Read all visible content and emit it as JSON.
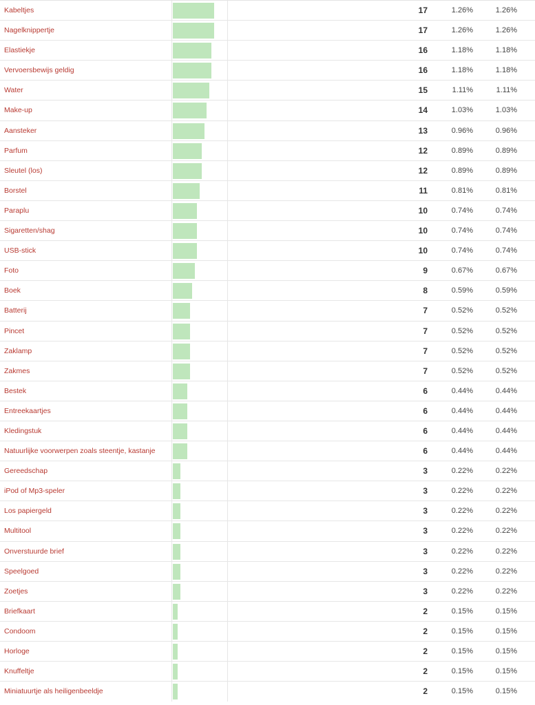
{
  "rows": [
    {
      "label": "Kabeltjes",
      "count": "17",
      "pct": "1.26%",
      "pct_valid": "1.26%",
      "share": 17
    },
    {
      "label": "Nagelknippertje",
      "count": "17",
      "pct": "1.26%",
      "pct_valid": "1.26%",
      "share": 17
    },
    {
      "label": "Elastiekje",
      "count": "16",
      "pct": "1.18%",
      "pct_valid": "1.18%",
      "share": 16
    },
    {
      "label": "Vervoersbewijs geldig",
      "count": "16",
      "pct": "1.18%",
      "pct_valid": "1.18%",
      "share": 16
    },
    {
      "label": "Water",
      "count": "15",
      "pct": "1.11%",
      "pct_valid": "1.11%",
      "share": 15
    },
    {
      "label": "Make-up",
      "count": "14",
      "pct": "1.03%",
      "pct_valid": "1.03%",
      "share": 14
    },
    {
      "label": "Aansteker",
      "count": "13",
      "pct": "0.96%",
      "pct_valid": "0.96%",
      "share": 13
    },
    {
      "label": "Parfum",
      "count": "12",
      "pct": "0.89%",
      "pct_valid": "0.89%",
      "share": 12
    },
    {
      "label": "Sleutel (los)",
      "count": "12",
      "pct": "0.89%",
      "pct_valid": "0.89%",
      "share": 12
    },
    {
      "label": "Borstel",
      "count": "11",
      "pct": "0.81%",
      "pct_valid": "0.81%",
      "share": 11
    },
    {
      "label": "Paraplu",
      "count": "10",
      "pct": "0.74%",
      "pct_valid": "0.74%",
      "share": 10
    },
    {
      "label": "Sigaretten/shag",
      "count": "10",
      "pct": "0.74%",
      "pct_valid": "0.74%",
      "share": 10
    },
    {
      "label": "USB-stick",
      "count": "10",
      "pct": "0.74%",
      "pct_valid": "0.74%",
      "share": 10
    },
    {
      "label": "Foto",
      "count": "9",
      "pct": "0.67%",
      "pct_valid": "0.67%",
      "share": 9
    },
    {
      "label": "Boek",
      "count": "8",
      "pct": "0.59%",
      "pct_valid": "0.59%",
      "share": 8
    },
    {
      "label": "Batterij",
      "count": "7",
      "pct": "0.52%",
      "pct_valid": "0.52%",
      "share": 7
    },
    {
      "label": "Pincet",
      "count": "7",
      "pct": "0.52%",
      "pct_valid": "0.52%",
      "share": 7
    },
    {
      "label": "Zaklamp",
      "count": "7",
      "pct": "0.52%",
      "pct_valid": "0.52%",
      "share": 7
    },
    {
      "label": "Zakmes",
      "count": "7",
      "pct": "0.52%",
      "pct_valid": "0.52%",
      "share": 7
    },
    {
      "label": "Bestek",
      "count": "6",
      "pct": "0.44%",
      "pct_valid": "0.44%",
      "share": 6
    },
    {
      "label": "Entreekaartjes",
      "count": "6",
      "pct": "0.44%",
      "pct_valid": "0.44%",
      "share": 6
    },
    {
      "label": "Kledingstuk",
      "count": "6",
      "pct": "0.44%",
      "pct_valid": "0.44%",
      "share": 6
    },
    {
      "label": "Natuurlijke voorwerpen zoals steentje, kastanje",
      "count": "6",
      "pct": "0.44%",
      "pct_valid": "0.44%",
      "share": 6
    },
    {
      "label": "Gereedschap",
      "count": "3",
      "pct": "0.22%",
      "pct_valid": "0.22%",
      "share": 3
    },
    {
      "label": "iPod of Mp3-speler",
      "count": "3",
      "pct": "0.22%",
      "pct_valid": "0.22%",
      "share": 3
    },
    {
      "label": "Los papiergeld",
      "count": "3",
      "pct": "0.22%",
      "pct_valid": "0.22%",
      "share": 3
    },
    {
      "label": "Multitool",
      "count": "3",
      "pct": "0.22%",
      "pct_valid": "0.22%",
      "share": 3
    },
    {
      "label": "Onverstuurde brief",
      "count": "3",
      "pct": "0.22%",
      "pct_valid": "0.22%",
      "share": 3
    },
    {
      "label": "Speelgoed",
      "count": "3",
      "pct": "0.22%",
      "pct_valid": "0.22%",
      "share": 3
    },
    {
      "label": "Zoetjes",
      "count": "3",
      "pct": "0.22%",
      "pct_valid": "0.22%",
      "share": 3
    },
    {
      "label": "Briefkaart",
      "count": "2",
      "pct": "0.15%",
      "pct_valid": "0.15%",
      "share": 2
    },
    {
      "label": "Condoom",
      "count": "2",
      "pct": "0.15%",
      "pct_valid": "0.15%",
      "share": 2
    },
    {
      "label": "Horloge",
      "count": "2",
      "pct": "0.15%",
      "pct_valid": "0.15%",
      "share": 2
    },
    {
      "label": "Knuffeltje",
      "count": "2",
      "pct": "0.15%",
      "pct_valid": "0.15%",
      "share": 2
    },
    {
      "label": "Miniatuurtje als heiligenbeeldje",
      "count": "2",
      "pct": "0.15%",
      "pct_valid": "0.15%",
      "share": 2
    }
  ],
  "colors": {
    "label": "#b83a32",
    "bar": "#bfe6bc",
    "grid": "#e6e6e6"
  }
}
